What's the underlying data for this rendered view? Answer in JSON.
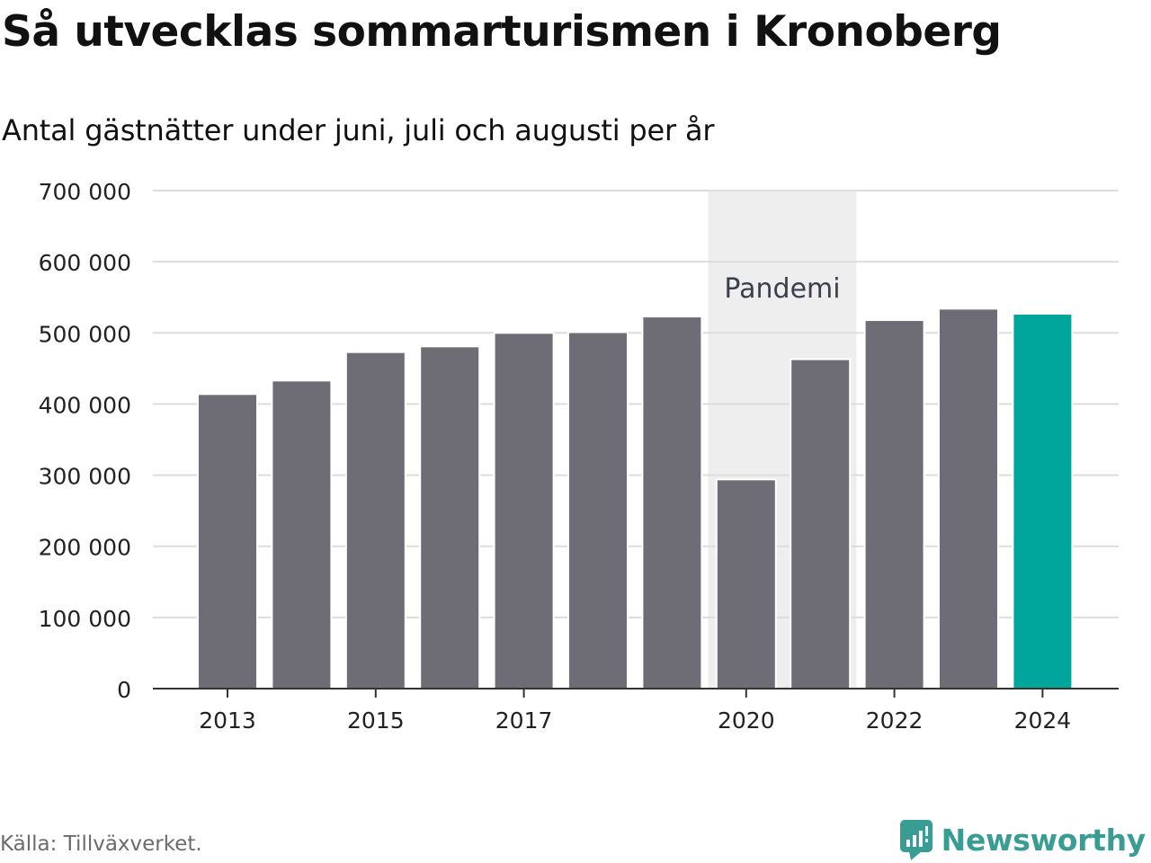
{
  "title": "Så utvecklas sommarturismen i Kronoberg",
  "subtitle": "Antal gästnätter under juni, juli och augusti per år",
  "source": "Källa: Tillväxverket.",
  "logo": {
    "text": "Newsworthy",
    "icon": "newsworthy-chart-bubble-icon"
  },
  "colors": {
    "bar": "#6e6d75",
    "highlight": "#00a69c",
    "grid": "#dddddd",
    "shade": "#eeeeee",
    "axis": "#333333",
    "text": "#222222",
    "shade_text": "#3a3f4d",
    "brand": "#3a9d93"
  },
  "chart_data": {
    "type": "bar",
    "categories": [
      "2013",
      "2014",
      "2015",
      "2016",
      "2017",
      "2018",
      "2019",
      "2020",
      "2021",
      "2022",
      "2023",
      "2024"
    ],
    "x_tick_labels": [
      "2013",
      "",
      "2015",
      "",
      "2017",
      "",
      "",
      "2020",
      "",
      "2022",
      "",
      "2024"
    ],
    "values": [
      414000,
      433000,
      473000,
      481000,
      500000,
      501000,
      523000,
      294000,
      463000,
      518000,
      534000,
      527000
    ],
    "highlight": "2024",
    "ylim": [
      0,
      700000
    ],
    "y_ticks": [
      0,
      100000,
      200000,
      300000,
      400000,
      500000,
      600000,
      700000
    ],
    "y_tick_labels": [
      "0",
      "100 000",
      "200 000",
      "300 000",
      "400 000",
      "500 000",
      "600 000",
      "700 000"
    ],
    "grid": true,
    "annotations": [
      {
        "type": "shaded-band",
        "text": "Pandemi",
        "from": "2020",
        "to": "2021"
      }
    ]
  }
}
